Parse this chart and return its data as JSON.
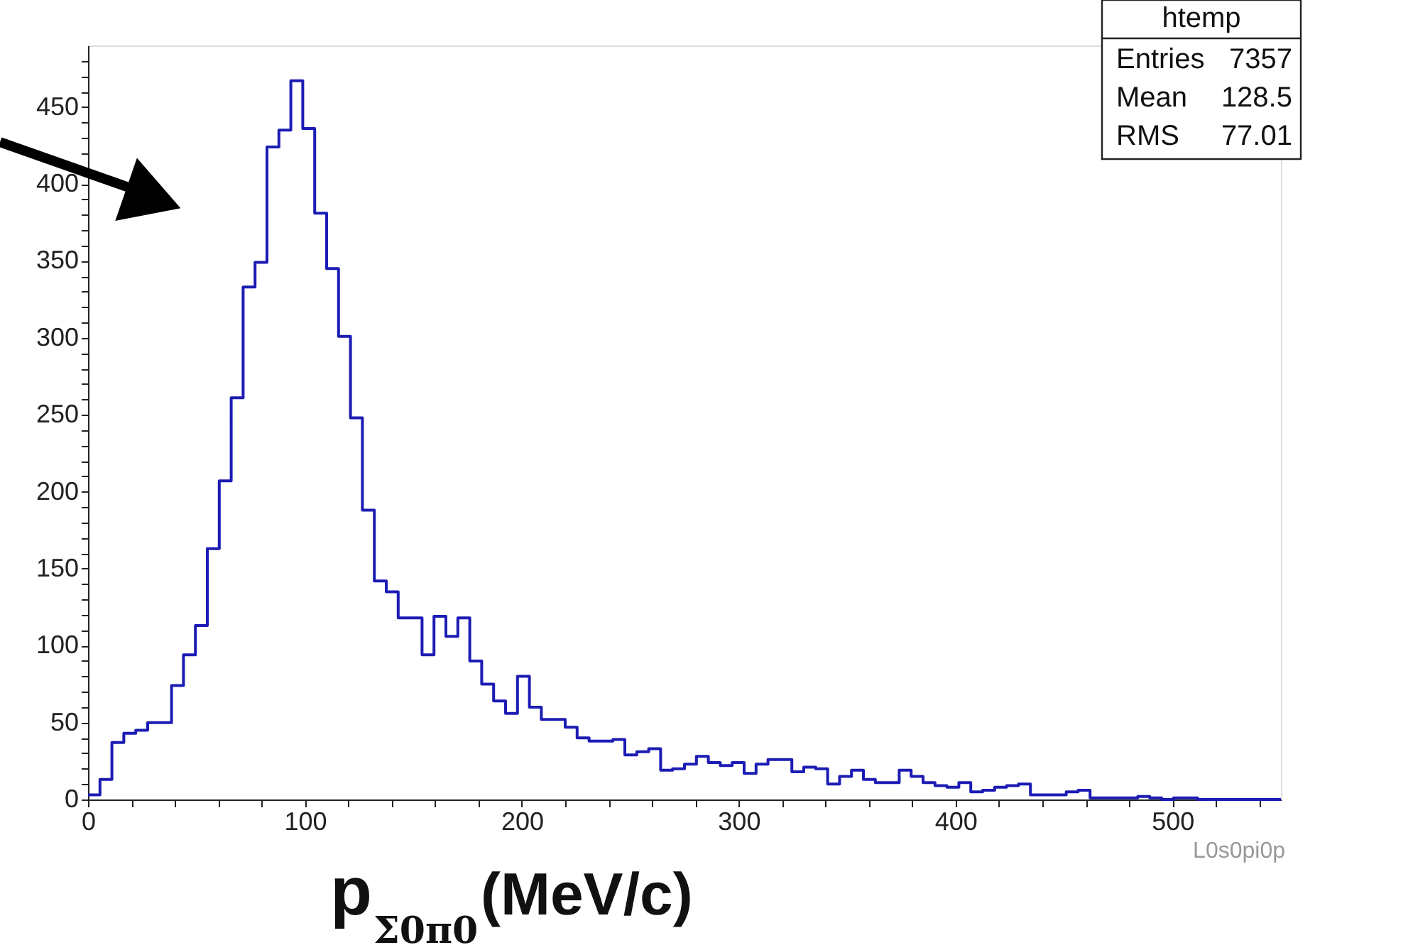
{
  "chart_data": {
    "type": "histogram",
    "xlabel": "p$_{Σ0π0}$ (MeV/c)",
    "bins": [
      0,
      5.5,
      11,
      16.5,
      22,
      27.5,
      33,
      38.5,
      44,
      49.5,
      55,
      60.5,
      66,
      71.5,
      77,
      82.5,
      88,
      93.5,
      99,
      104.5,
      110,
      115.5,
      121,
      126.5,
      132,
      137.5,
      143,
      148.5,
      154,
      159.5,
      165,
      170.5,
      176,
      181.5,
      187,
      192.5,
      198,
      203.5,
      209,
      214.5,
      220,
      225.5,
      231,
      236.5,
      242,
      247.5,
      253,
      258.5,
      264,
      269.5,
      275,
      280.5,
      286,
      291.5,
      297,
      302.5,
      308,
      313.5,
      319,
      324.5,
      330,
      335.5,
      341,
      346.5,
      352,
      357.5,
      363,
      368.5,
      374,
      379.5,
      385,
      390.5,
      396,
      401.5,
      407,
      412.5,
      418,
      423.5,
      429,
      434.5,
      440,
      445.5,
      451,
      456.5,
      462,
      467.5,
      473,
      478.5,
      484,
      489.5,
      495,
      500.5,
      506,
      511.5,
      517,
      522.5,
      528,
      533.5,
      539,
      544.5,
      550
    ],
    "values": [
      3,
      13,
      37,
      43,
      45,
      50,
      50,
      74,
      94,
      113,
      163,
      207,
      261,
      333,
      349,
      424,
      435,
      467,
      436,
      381,
      345,
      301,
      248,
      188,
      142,
      135,
      118,
      118,
      94,
      119,
      106,
      118,
      90,
      75,
      64,
      56,
      80,
      60,
      52,
      52,
      47,
      40,
      38,
      38,
      39,
      29,
      31,
      33,
      19,
      20,
      23,
      28,
      24,
      22,
      24,
      17,
      23,
      26,
      26,
      18,
      21,
      20,
      10,
      15,
      19,
      13,
      11,
      11,
      19,
      15,
      11,
      9,
      8,
      11,
      5,
      6,
      8,
      9,
      10,
      3,
      3,
      3,
      5,
      6,
      1,
      1,
      1,
      1,
      2,
      1,
      0,
      1,
      1,
      0,
      0,
      0,
      0,
      0,
      0,
      0
    ],
    "color": "#1c1cb4",
    "xlim": [
      0,
      550
    ],
    "xticks": [
      0,
      {
        "value": 20,
        "label": null
      },
      {
        "value": 40,
        "label": null
      },
      {
        "value": 60,
        "label": null
      },
      {
        "value": 80,
        "label": null
      },
      100,
      {
        "value": 120,
        "label": null
      },
      {
        "value": 140,
        "label": null
      },
      {
        "value": 160,
        "label": null
      },
      {
        "value": 180,
        "label": null
      },
      200,
      {
        "value": 220,
        "label": null
      },
      {
        "value": 240,
        "label": null
      },
      {
        "value": 260,
        "label": null
      },
      {
        "value": 280,
        "label": null
      },
      300,
      {
        "value": 320,
        "label": null
      },
      {
        "value": 340,
        "label": null
      },
      {
        "value": 360,
        "label": null
      },
      {
        "value": 380,
        "label": null
      },
      400,
      {
        "value": 420,
        "label": null
      },
      {
        "value": 440,
        "label": null
      },
      {
        "value": 460,
        "label": null
      },
      {
        "value": 480,
        "label": null
      },
      500,
      {
        "value": 520,
        "label": null
      },
      {
        "value": 540,
        "label": null
      }
    ],
    "ylim": [
      0,
      490
    ],
    "yticks": [
      0,
      {
        "value": 10,
        "label": null
      },
      {
        "value": 20,
        "label": null
      },
      {
        "value": 30,
        "label": null
      },
      {
        "value": 40,
        "label": null
      },
      50,
      {
        "value": 60,
        "label": null
      },
      {
        "value": 70,
        "label": null
      },
      {
        "value": 80,
        "label": null
      },
      {
        "value": 90,
        "label": null
      },
      100,
      {
        "value": 110,
        "label": null
      },
      {
        "value": 120,
        "label": null
      },
      {
        "value": 130,
        "label": null
      },
      {
        "value": 140,
        "label": null
      },
      150,
      {
        "value": 160,
        "label": null
      },
      {
        "value": 170,
        "label": null
      },
      {
        "value": 180,
        "label": null
      },
      {
        "value": 190,
        "label": null
      },
      200,
      {
        "value": 210,
        "label": null
      },
      {
        "value": 220,
        "label": null
      },
      {
        "value": 230,
        "label": null
      },
      {
        "value": 240,
        "label": null
      },
      250,
      {
        "value": 260,
        "label": null
      },
      {
        "value": 270,
        "label": null
      },
      {
        "value": 280,
        "label": null
      },
      {
        "value": 290,
        "label": null
      },
      300,
      {
        "value": 310,
        "label": null
      },
      {
        "value": 320,
        "label": null
      },
      {
        "value": 330,
        "label": null
      },
      {
        "value": 340,
        "label": null
      },
      350,
      {
        "value": 360,
        "label": null
      },
      {
        "value": 370,
        "label": null
      },
      {
        "value": 380,
        "label": null
      },
      {
        "value": 390,
        "label": null
      },
      400,
      {
        "value": 410,
        "label": null
      },
      {
        "value": 420,
        "label": null
      },
      {
        "value": 430,
        "label": null
      },
      {
        "value": 440,
        "label": null
      },
      450,
      {
        "value": 460,
        "label": null
      },
      {
        "value": 470,
        "label": null
      },
      {
        "value": 480,
        "label": null
      }
    ],
    "grid": false,
    "annotations": [
      "htemp",
      "Entries 7357",
      "Mean 128.5",
      "RMS 77.01",
      "L0s0pi0p"
    ]
  }
}
